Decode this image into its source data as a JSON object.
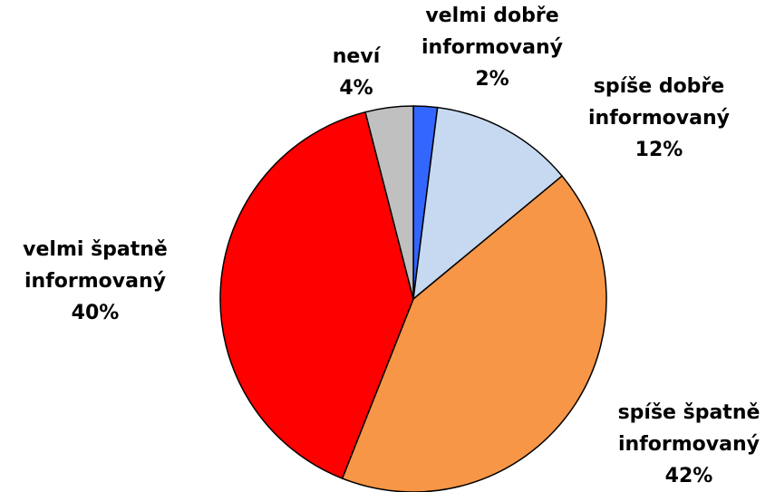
{
  "chart_data": {
    "type": "pie",
    "categories": [
      "velmi dobře informovaný",
      "spíše dobře informovaný",
      "spíše špatně informovaný",
      "velmi špatně informovaný",
      "neví"
    ],
    "values": [
      2,
      12,
      42,
      40,
      4
    ],
    "value_labels": [
      "2%",
      "12%",
      "42%",
      "40%",
      "4%"
    ],
    "colors": [
      "#3366ff",
      "#c6d9f1",
      "#f79646",
      "#ff0000",
      "#c0c0c0"
    ]
  }
}
